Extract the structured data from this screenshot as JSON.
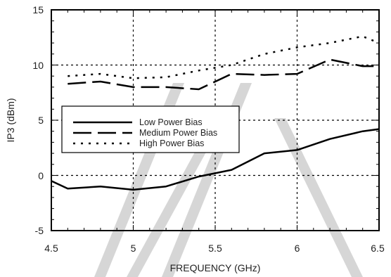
{
  "chart_data": {
    "type": "line",
    "xlabel": "FREQUENCY (GHz)",
    "ylabel": "IP3 (dBm)",
    "xlim": [
      4.5,
      6.5
    ],
    "ylim": [
      -5,
      15
    ],
    "x_ticks": [
      "4.5",
      "5",
      "5.5",
      "6",
      "6.5"
    ],
    "y_ticks": [
      "15",
      "10",
      "5",
      "0",
      "-5"
    ],
    "grid": "dotted",
    "legend_position": "left-middle",
    "watermark": "ITC",
    "series": [
      {
        "name": "Low Power Bias",
        "style": "solid",
        "points": [
          [
            4.5,
            -0.5
          ],
          [
            4.6,
            -1.2
          ],
          [
            4.8,
            -1.0
          ],
          [
            5.0,
            -1.3
          ],
          [
            5.2,
            -1.0
          ],
          [
            5.4,
            -0.1
          ],
          [
            5.6,
            0.5
          ],
          [
            5.8,
            2.0
          ],
          [
            6.0,
            2.3
          ],
          [
            6.2,
            3.3
          ],
          [
            6.4,
            4.0
          ],
          [
            6.5,
            4.2
          ]
        ]
      },
      {
        "name": "Medium Power Bias",
        "style": "dashed",
        "points": [
          [
            4.6,
            8.3
          ],
          [
            4.8,
            8.5
          ],
          [
            5.0,
            8.0
          ],
          [
            5.2,
            8.0
          ],
          [
            5.4,
            7.8
          ],
          [
            5.6,
            9.2
          ],
          [
            5.8,
            9.1
          ],
          [
            6.0,
            9.2
          ],
          [
            6.2,
            10.5
          ],
          [
            6.4,
            9.9
          ],
          [
            6.5,
            9.9
          ]
        ]
      },
      {
        "name": "High Power Bias",
        "style": "dotted",
        "points": [
          [
            4.6,
            9.0
          ],
          [
            4.8,
            9.2
          ],
          [
            5.0,
            8.8
          ],
          [
            5.2,
            8.9
          ],
          [
            5.4,
            9.5
          ],
          [
            5.6,
            10.0
          ],
          [
            5.8,
            11.0
          ],
          [
            6.0,
            11.6
          ],
          [
            6.2,
            12.0
          ],
          [
            6.4,
            12.6
          ],
          [
            6.5,
            12.0
          ]
        ]
      }
    ]
  }
}
